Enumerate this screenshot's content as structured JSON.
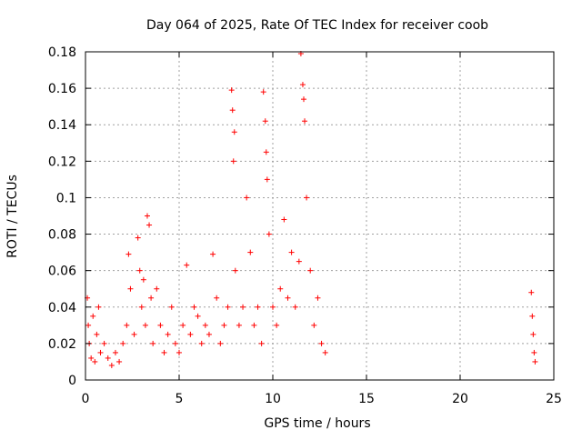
{
  "chart_data": {
    "type": "scatter",
    "title": "Day 064 of 2025, Rate Of TEC Index for receiver coob",
    "xlabel": "GPS time / hours",
    "ylabel": "ROTI / TECUs",
    "xlim": [
      0,
      25
    ],
    "ylim": [
      0,
      0.18
    ],
    "xticks": [
      0,
      5,
      10,
      15,
      20,
      25
    ],
    "yticks": [
      0,
      0.02,
      0.04,
      0.06,
      0.08,
      0.1,
      0.12,
      0.14,
      0.16,
      0.18
    ],
    "xtick_labels": [
      "0",
      "5",
      "10",
      "15",
      "20",
      "25"
    ],
    "ytick_labels": [
      "0",
      "0.02",
      "0.04",
      "0.06",
      "0.08",
      "0.1",
      "0.12",
      "0.14",
      "0.16",
      "0.18"
    ],
    "grid": true,
    "marker": "plus",
    "color": "#ff0000",
    "series": [
      {
        "x": [
          0.1,
          0.15,
          0.2,
          0.3,
          0.4,
          0.5,
          0.6,
          0.7,
          0.8,
          1.0,
          1.2,
          1.4,
          1.6,
          1.8,
          2.0,
          2.2,
          2.3,
          2.4,
          2.6,
          2.8,
          2.9,
          3.0,
          3.1,
          3.2,
          3.3,
          3.4,
          3.5,
          3.6,
          3.8,
          4.0,
          4.2,
          4.4,
          4.6,
          4.8,
          5.0,
          5.2,
          5.4,
          5.6,
          5.8,
          6.0,
          6.2,
          6.4,
          6.6,
          6.8,
          7.0,
          7.2,
          7.4,
          7.6,
          7.8,
          7.85,
          7.9,
          7.95,
          8.0,
          8.2,
          8.4,
          8.6,
          8.8,
          9.0,
          9.2,
          9.4,
          9.5,
          9.6,
          9.65,
          9.7,
          9.8,
          10.0,
          10.2,
          10.4,
          10.6,
          10.8,
          11.0,
          11.2,
          11.4,
          11.5,
          11.6,
          11.65,
          11.7,
          11.8,
          12.0,
          12.2,
          12.4,
          12.6,
          12.8,
          23.8,
          23.85,
          23.9,
          23.95,
          24.0
        ],
        "y": [
          0.045,
          0.03,
          0.02,
          0.012,
          0.035,
          0.01,
          0.025,
          0.04,
          0.015,
          0.02,
          0.012,
          0.008,
          0.015,
          0.01,
          0.02,
          0.03,
          0.069,
          0.05,
          0.025,
          0.078,
          0.06,
          0.04,
          0.055,
          0.03,
          0.09,
          0.085,
          0.045,
          0.02,
          0.05,
          0.03,
          0.015,
          0.025,
          0.04,
          0.02,
          0.015,
          0.03,
          0.063,
          0.025,
          0.04,
          0.035,
          0.02,
          0.03,
          0.025,
          0.069,
          0.045,
          0.02,
          0.03,
          0.04,
          0.159,
          0.148,
          0.12,
          0.136,
          0.06,
          0.03,
          0.04,
          0.1,
          0.07,
          0.03,
          0.04,
          0.02,
          0.158,
          0.142,
          0.125,
          0.11,
          0.08,
          0.04,
          0.03,
          0.05,
          0.088,
          0.045,
          0.07,
          0.04,
          0.065,
          0.179,
          0.162,
          0.154,
          0.142,
          0.1,
          0.06,
          0.03,
          0.045,
          0.02,
          0.015,
          0.048,
          0.035,
          0.025,
          0.015,
          0.01
        ]
      }
    ]
  }
}
